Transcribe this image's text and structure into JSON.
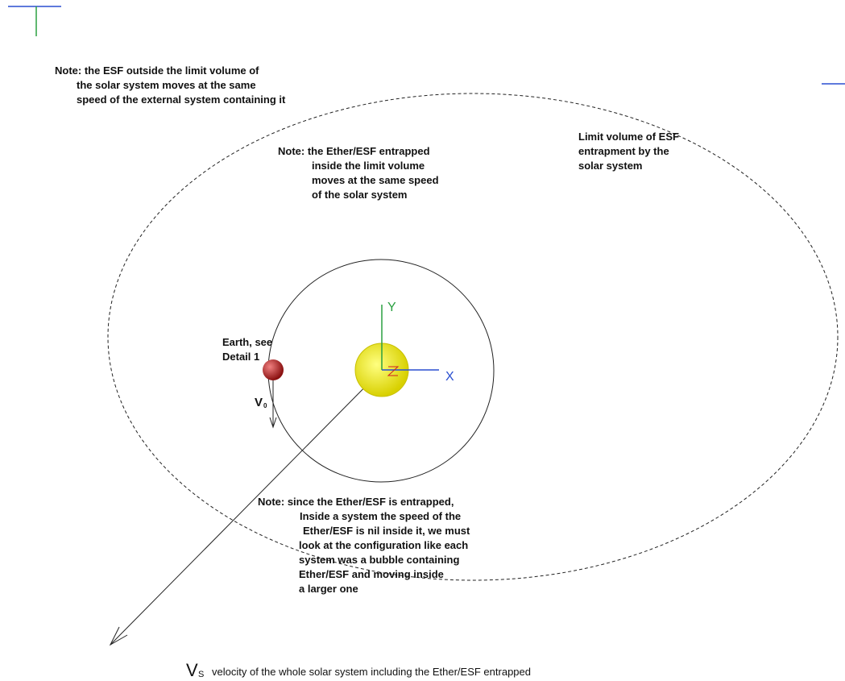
{
  "notes": {
    "outside": [
      "Note: the ESF outside the limit volume of",
      "the solar system moves at the same",
      "speed of the external system containing it"
    ],
    "inside": [
      "Note: the Ether/ESF entrapped",
      "inside the limit volume",
      "moves at the same speed",
      "of the solar system"
    ],
    "limit": [
      "Limit volume of ESF",
      "entrapment by the",
      "solar system"
    ],
    "bubble": [
      "Note: since the Ether/ESF is entrapped,",
      "Inside a system the speed of the",
      "Ether/ESF is nil inside it, we must",
      "look at the configuration like each",
      "system was a bubble containing",
      "Ether/ESF and moving inside",
      "a larger one"
    ]
  },
  "earth": [
    "Earth, see",
    "Detail 1"
  ],
  "axes": {
    "x": "X",
    "y": "Y"
  },
  "v0": {
    "symbol": "V",
    "subscript": "0"
  },
  "vs": {
    "symbol": "V",
    "subscript": "S",
    "caption": "velocity of the whole solar system including the Ether/ESF entrapped"
  }
}
